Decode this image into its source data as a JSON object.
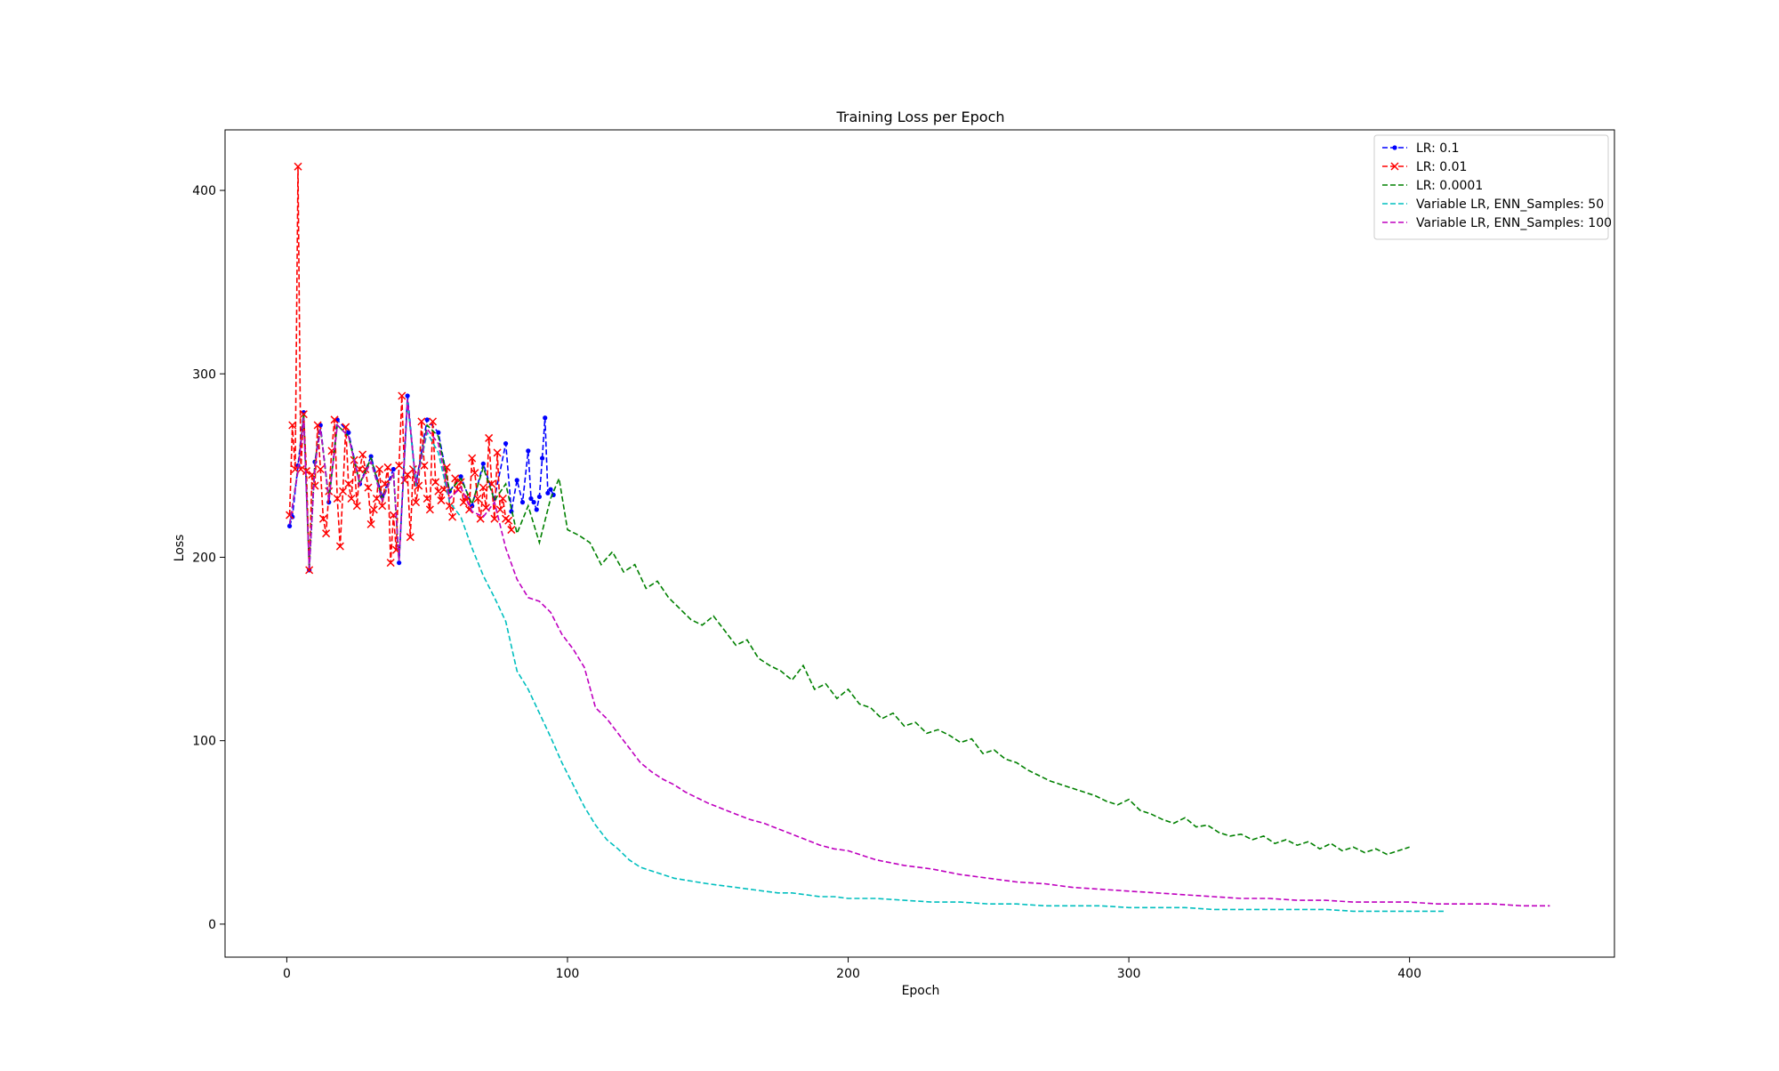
{
  "chart_data": {
    "type": "line",
    "title": "Training Loss per Epoch",
    "xlabel": "Epoch",
    "ylabel": "Loss",
    "xlim": [
      -22,
      473
    ],
    "ylim": [
      -18,
      433
    ],
    "xticks": [
      0,
      100,
      200,
      300,
      400
    ],
    "yticks": [
      0,
      100,
      200,
      300,
      400
    ],
    "grid": false,
    "legend_position": "top-right",
    "series": [
      {
        "name": "LR: 0.1",
        "color": "#0000ff",
        "linestyle": "dashed",
        "marker": "dot",
        "x": [
          1,
          2,
          4,
          6,
          8,
          10,
          12,
          15,
          18,
          22,
          26,
          30,
          34,
          38,
          40,
          43,
          46,
          50,
          54,
          58,
          62,
          66,
          70,
          74,
          78,
          80,
          82,
          84,
          86,
          87,
          88,
          89,
          90,
          91,
          92,
          93,
          94,
          95
        ],
        "y": [
          217,
          222,
          250,
          279,
          193,
          252,
          272,
          230,
          275,
          268,
          240,
          255,
          233,
          248,
          197,
          288,
          240,
          275,
          268,
          236,
          244,
          228,
          251,
          232,
          262,
          225,
          242,
          230,
          258,
          232,
          230,
          226,
          233,
          254,
          276,
          235,
          237,
          234
        ]
      },
      {
        "name": "LR: 0.01",
        "color": "#ff0000",
        "linestyle": "dashed",
        "marker": "x",
        "x": [
          1,
          2,
          3,
          4,
          5,
          6,
          7,
          8,
          9,
          10,
          11,
          12,
          13,
          14,
          15,
          16,
          17,
          18,
          19,
          20,
          21,
          22,
          23,
          24,
          25,
          26,
          27,
          28,
          29,
          30,
          31,
          32,
          33,
          34,
          35,
          36,
          37,
          38,
          39,
          40,
          41,
          42,
          43,
          44,
          45,
          46,
          47,
          48,
          49,
          50,
          51,
          52,
          53,
          54,
          55,
          56,
          57,
          58,
          59,
          60,
          61,
          62,
          63,
          64,
          65,
          66,
          67,
          68,
          69,
          70,
          71,
          72,
          73,
          74,
          75,
          76,
          77,
          78,
          79,
          80
        ],
        "y": [
          223,
          272,
          248,
          413,
          248,
          278,
          247,
          193,
          245,
          239,
          272,
          248,
          221,
          213,
          236,
          258,
          275,
          232,
          206,
          236,
          271,
          240,
          232,
          253,
          228,
          248,
          256,
          248,
          238,
          218,
          226,
          232,
          248,
          228,
          240,
          249,
          197,
          223,
          204,
          250,
          288,
          242,
          245,
          211,
          248,
          230,
          239,
          274,
          250,
          232,
          226,
          274,
          241,
          236,
          231,
          237,
          249,
          228,
          222,
          243,
          237,
          241,
          230,
          233,
          226,
          254,
          246,
          232,
          221,
          238,
          227,
          265,
          240,
          221,
          257,
          226,
          232,
          221,
          220,
          215
        ]
      },
      {
        "name": "LR: 0.0001",
        "color": "#008000",
        "linestyle": "dashed",
        "x": [
          1,
          4,
          6,
          8,
          10,
          12,
          15,
          18,
          22,
          26,
          30,
          34,
          38,
          40,
          43,
          46,
          50,
          54,
          58,
          62,
          66,
          70,
          74,
          78,
          82,
          86,
          90,
          94,
          97,
          100,
          104,
          108,
          112,
          116,
          120,
          124,
          128,
          132,
          136,
          140,
          144,
          148,
          152,
          156,
          160,
          164,
          168,
          172,
          176,
          180,
          184,
          188,
          192,
          196,
          200,
          204,
          208,
          212,
          216,
          220,
          224,
          228,
          232,
          236,
          240,
          244,
          248,
          252,
          256,
          260,
          264,
          268,
          272,
          276,
          280,
          284,
          288,
          292,
          296,
          300,
          304,
          308,
          312,
          316,
          320,
          324,
          328,
          332,
          336,
          340,
          344,
          348,
          352,
          356,
          360,
          364,
          368,
          372,
          376,
          380,
          384,
          388,
          392,
          396,
          400
        ],
        "y": [
          218,
          248,
          278,
          194,
          252,
          270,
          232,
          272,
          266,
          240,
          254,
          232,
          246,
          198,
          286,
          240,
          272,
          266,
          236,
          243,
          229,
          249,
          231,
          240,
          213,
          228,
          208,
          232,
          243,
          215,
          212,
          208,
          196,
          203,
          192,
          196,
          183,
          187,
          178,
          172,
          166,
          163,
          168,
          160,
          152,
          155,
          145,
          141,
          138,
          133,
          141,
          128,
          131,
          123,
          128,
          120,
          118,
          112,
          115,
          108,
          110,
          104,
          106,
          103,
          99,
          101,
          93,
          95,
          90,
          88,
          84,
          81,
          78,
          76,
          74,
          72,
          70,
          67,
          65,
          68,
          62,
          60,
          57,
          55,
          58,
          53,
          54,
          50,
          48,
          49,
          46,
          48,
          44,
          46,
          43,
          45,
          41,
          44,
          40,
          42,
          39,
          41,
          38,
          40,
          42
        ]
      },
      {
        "name": "Variable LR, ENN_Samples: 50",
        "color": "#00bfbf",
        "linestyle": "dashed",
        "x": [
          1,
          4,
          6,
          8,
          10,
          12,
          15,
          18,
          22,
          26,
          30,
          34,
          38,
          40,
          43,
          46,
          50,
          54,
          58,
          62,
          66,
          70,
          74,
          78,
          82,
          86,
          90,
          94,
          98,
          102,
          106,
          110,
          114,
          118,
          122,
          126,
          130,
          134,
          138,
          142,
          146,
          150,
          155,
          160,
          165,
          170,
          175,
          180,
          185,
          190,
          195,
          200,
          210,
          220,
          230,
          240,
          250,
          260,
          270,
          280,
          290,
          300,
          310,
          320,
          330,
          340,
          350,
          360,
          370,
          380,
          390,
          400,
          410,
          413
        ],
        "y": [
          218,
          247,
          276,
          194,
          250,
          270,
          231,
          272,
          266,
          240,
          252,
          231,
          246,
          198,
          285,
          239,
          268,
          257,
          230,
          222,
          205,
          190,
          178,
          165,
          138,
          128,
          115,
          102,
          88,
          76,
          64,
          54,
          46,
          41,
          35,
          31,
          29,
          27,
          25,
          24,
          23,
          22,
          21,
          20,
          19,
          18,
          17,
          17,
          16,
          15,
          15,
          14,
          14,
          13,
          12,
          12,
          11,
          11,
          10,
          10,
          10,
          9,
          9,
          9,
          8,
          8,
          8,
          8,
          8,
          7,
          7,
          7,
          7,
          7
        ]
      },
      {
        "name": "Variable LR, ENN_Samples: 100",
        "color": "#bf00bf",
        "linestyle": "dashed",
        "x": [
          1,
          4,
          6,
          8,
          10,
          12,
          15,
          18,
          22,
          26,
          30,
          34,
          38,
          40,
          43,
          46,
          50,
          54,
          58,
          62,
          66,
          70,
          74,
          78,
          82,
          86,
          90,
          94,
          98,
          102,
          106,
          110,
          114,
          118,
          122,
          126,
          130,
          134,
          138,
          142,
          146,
          150,
          155,
          160,
          165,
          170,
          175,
          180,
          185,
          190,
          195,
          200,
          210,
          220,
          230,
          240,
          250,
          260,
          270,
          280,
          290,
          300,
          310,
          320,
          330,
          340,
          350,
          360,
          370,
          380,
          390,
          400,
          410,
          420,
          430,
          440,
          450
        ],
        "y": [
          218,
          247,
          276,
          194,
          250,
          270,
          231,
          272,
          266,
          240,
          252,
          231,
          246,
          198,
          286,
          240,
          270,
          262,
          232,
          238,
          225,
          222,
          230,
          205,
          188,
          178,
          176,
          170,
          158,
          150,
          140,
          118,
          112,
          104,
          96,
          88,
          83,
          79,
          76,
          72,
          69,
          66,
          63,
          60,
          57,
          55,
          52,
          49,
          46,
          43,
          41,
          40,
          35,
          32,
          30,
          27,
          25,
          23,
          22,
          20,
          19,
          18,
          17,
          16,
          15,
          14,
          14,
          13,
          13,
          12,
          12,
          12,
          11,
          11,
          11,
          10,
          10
        ]
      }
    ]
  }
}
